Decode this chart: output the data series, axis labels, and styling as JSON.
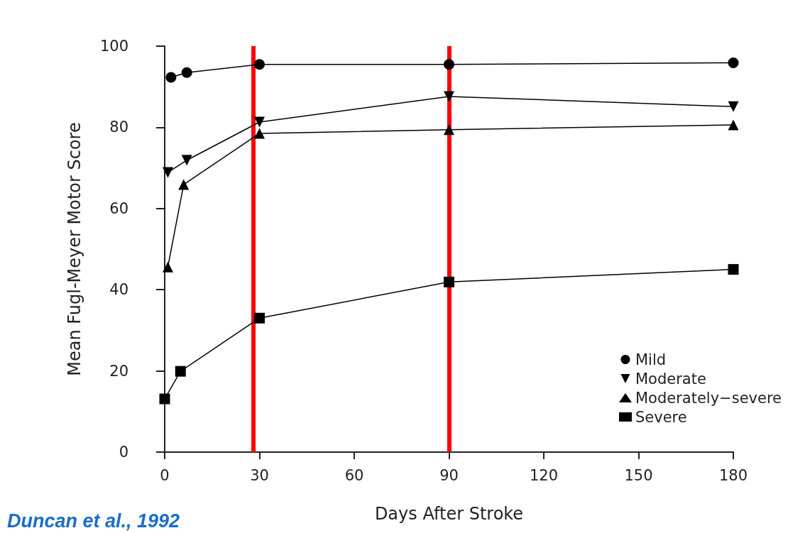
{
  "chart_data": {
    "type": "line",
    "xlabel": "Days After Stroke",
    "ylabel": "Mean Fugl-Meyer Motor Score",
    "annotations": [
      "Duncan et al., 1992"
    ],
    "xlim": [
      0,
      180
    ],
    "xticks": [
      0,
      30,
      60,
      90,
      120,
      150,
      180
    ],
    "ylim": [
      0,
      100
    ],
    "yticks": [
      0,
      20,
      40,
      60,
      80,
      100
    ],
    "grid": false,
    "legend": "bottom right",
    "line_style": "solid",
    "series": [
      {
        "name": "Mild",
        "color": "#000000",
        "marker": "circle",
        "x": [
          2,
          7,
          30,
          90,
          180
        ],
        "values": [
          92.3,
          93.5,
          95.5,
          95.5,
          95.9
        ]
      },
      {
        "name": "Moderate",
        "color": "#000000",
        "marker": "triangle-down",
        "x": [
          1,
          7,
          30,
          90,
          180
        ],
        "values": [
          68.9,
          71.9,
          81.3,
          87.6,
          85.1
        ]
      },
      {
        "name": "Moderately−severe",
        "color": "#000000",
        "marker": "triangle",
        "x": [
          1,
          6,
          30,
          90,
          180
        ],
        "values": [
          45.6,
          65.9,
          78.5,
          79.4,
          80.6
        ]
      },
      {
        "name": "Severe",
        "color": "#000000",
        "marker": "square",
        "x": [
          0,
          5,
          30,
          90,
          180
        ],
        "values": [
          13.1,
          19.9,
          33.0,
          41.9,
          45.0
        ]
      }
    ],
    "ref_lines": [
      {
        "axis": "x",
        "value": 28,
        "color": "#ff0000"
      },
      {
        "axis": "x",
        "value": 90,
        "color": "#ff0000"
      }
    ]
  }
}
